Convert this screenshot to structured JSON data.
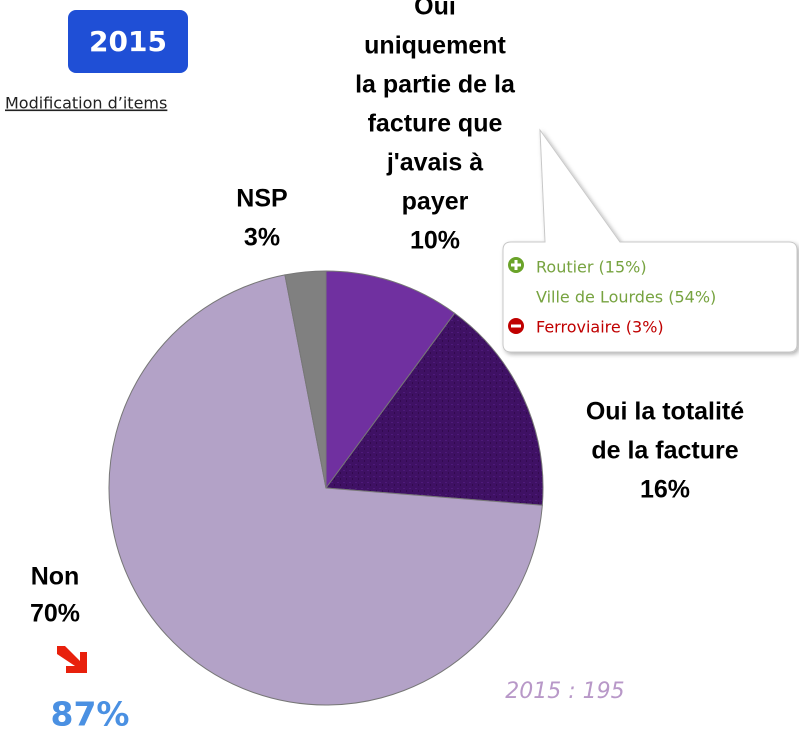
{
  "chart_data": {
    "type": "pie",
    "badge": "2015",
    "subtitle": "Modification d’items",
    "labels": [
      [
        "Oui",
        "uniquement",
        "la partie de la",
        "facture que",
        "j'avais à",
        "payer"
      ],
      [
        "Oui la totalité",
        "de la facture"
      ],
      [
        "Non"
      ],
      [
        "NSP"
      ]
    ],
    "values": [
      10,
      16,
      70,
      3
    ],
    "value_labels": [
      "10%",
      "16%",
      "70%",
      "3%"
    ],
    "colors": [
      "#7030a0",
      "#3f1164",
      "#b3a2c7",
      "#808080"
    ],
    "callout": {
      "plus": "Routier (15%)",
      "neutral": "Ville de Lourdes (54%)",
      "minus": "Ferroviaire (3%)"
    },
    "trend_value": "87%",
    "base_note": "2015 : 195"
  }
}
